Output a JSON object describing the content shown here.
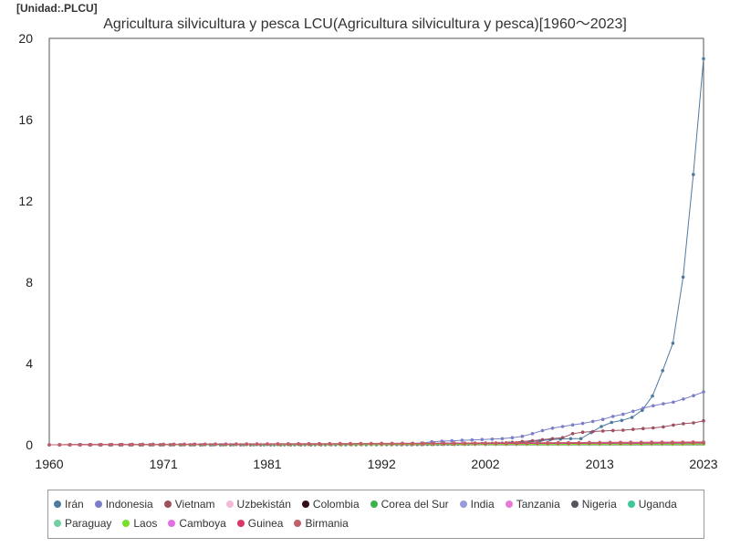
{
  "unit_label": "[Unidad:.PLCU]",
  "chart_data": {
    "type": "line",
    "title": "Agricultura silvicultura y pesca LCU(Agricultura silvicultura y pesca)[1960～2023]",
    "xlabel": "",
    "ylabel": "",
    "xlim": [
      1960,
      2023
    ],
    "ylim": [
      0,
      20
    ],
    "x_ticks": [
      1960,
      1971,
      1981,
      1992,
      2002,
      2013,
      2023
    ],
    "y_ticks": [
      0,
      4,
      8,
      12,
      16,
      20
    ],
    "grid": true,
    "legend_position": "bottom",
    "series": [
      {
        "name": "Irán",
        "color": "#4f7aa0",
        "points": [
          [
            1960,
            0
          ],
          [
            1990,
            0
          ],
          [
            1998,
            0.02
          ],
          [
            2003,
            0.05
          ],
          [
            2006,
            0.1
          ],
          [
            2008,
            0.2
          ],
          [
            2009,
            0.25
          ],
          [
            2010,
            0.28
          ],
          [
            2011,
            0.3
          ],
          [
            2012,
            0.3
          ],
          [
            2013,
            0.6
          ],
          [
            2014,
            0.9
          ],
          [
            2015,
            1.1
          ],
          [
            2016,
            1.2
          ],
          [
            2017,
            1.35
          ],
          [
            2018,
            1.7
          ],
          [
            2019,
            2.4
          ],
          [
            2020,
            3.65
          ],
          [
            2021,
            5.0
          ],
          [
            2022,
            8.25
          ],
          [
            2023,
            13.3
          ],
          [
            2024,
            19.0
          ]
        ]
      },
      {
        "name": "Indonesia",
        "color": "#7b7fc8",
        "points": [
          [
            1960,
            0
          ],
          [
            1986,
            0
          ],
          [
            1990,
            0.02
          ],
          [
            1996,
            0.05
          ],
          [
            1997,
            0.08
          ],
          [
            1998,
            0.15
          ],
          [
            1999,
            0.18
          ],
          [
            2000,
            0.2
          ],
          [
            2001,
            0.22
          ],
          [
            2002,
            0.24
          ],
          [
            2003,
            0.26
          ],
          [
            2004,
            0.28
          ],
          [
            2005,
            0.3
          ],
          [
            2006,
            0.35
          ],
          [
            2007,
            0.42
          ],
          [
            2008,
            0.55
          ],
          [
            2009,
            0.7
          ],
          [
            2010,
            0.82
          ],
          [
            2011,
            0.9
          ],
          [
            2012,
            0.98
          ],
          [
            2013,
            1.05
          ],
          [
            2014,
            1.15
          ],
          [
            2015,
            1.25
          ],
          [
            2016,
            1.4
          ],
          [
            2017,
            1.5
          ],
          [
            2018,
            1.65
          ],
          [
            2019,
            1.8
          ],
          [
            2020,
            1.92
          ],
          [
            2021,
            2.02
          ],
          [
            2022,
            2.1
          ],
          [
            2023,
            2.25
          ],
          [
            2024,
            2.42
          ],
          [
            2025,
            2.6
          ]
        ]
      },
      {
        "name": "Vietnam",
        "color": "#9c4f5f",
        "points": [
          [
            1960,
            0
          ],
          [
            1995,
            0
          ],
          [
            2000,
            0.03
          ],
          [
            2005,
            0.08
          ],
          [
            2008,
            0.2
          ],
          [
            2010,
            0.3
          ],
          [
            2011,
            0.35
          ],
          [
            2012,
            0.55
          ],
          [
            2013,
            0.62
          ],
          [
            2014,
            0.65
          ],
          [
            2015,
            0.68
          ],
          [
            2016,
            0.7
          ],
          [
            2017,
            0.72
          ],
          [
            2018,
            0.76
          ],
          [
            2019,
            0.8
          ],
          [
            2020,
            0.83
          ],
          [
            2021,
            0.88
          ],
          [
            2022,
            0.97
          ],
          [
            2023,
            1.04
          ],
          [
            2024,
            1.08
          ],
          [
            2025,
            1.18
          ]
        ]
      },
      {
        "name": "Uzbekistán",
        "color": "#f4b9d4",
        "points": [
          [
            1960,
            0
          ],
          [
            2023,
            0.06
          ]
        ]
      },
      {
        "name": "Colombia",
        "color": "#3a0a16",
        "points": [
          [
            1960,
            0
          ],
          [
            2023,
            0.05
          ]
        ]
      },
      {
        "name": "Corea del Sur",
        "color": "#3bb54a",
        "points": [
          [
            1960,
            0
          ],
          [
            2023,
            0.04
          ]
        ]
      },
      {
        "name": "India",
        "color": "#9a9ad8",
        "points": [
          [
            1960,
            0
          ],
          [
            2023,
            0.03
          ]
        ]
      },
      {
        "name": "Tanzania",
        "color": "#e57ad8",
        "points": [
          [
            1960,
            0
          ],
          [
            2023,
            0.08
          ]
        ]
      },
      {
        "name": "Nigeria",
        "color": "#55555f",
        "points": [
          [
            1960,
            0
          ],
          [
            2023,
            0.1
          ]
        ]
      },
      {
        "name": "Uganda",
        "color": "#3ec79b",
        "points": [
          [
            1960,
            0
          ],
          [
            2023,
            0.05
          ]
        ]
      },
      {
        "name": "Paraguay",
        "color": "#6fd0a0",
        "points": [
          [
            1960,
            0
          ],
          [
            2023,
            0.04
          ]
        ]
      },
      {
        "name": "Laos",
        "color": "#77e02a",
        "points": [
          [
            1960,
            0
          ],
          [
            2023,
            0.03
          ]
        ]
      },
      {
        "name": "Camboya",
        "color": "#e36fe3",
        "points": [
          [
            1960,
            0
          ],
          [
            2023,
            0.12
          ]
        ]
      },
      {
        "name": "Guinea",
        "color": "#d93868",
        "points": [
          [
            1960,
            0
          ],
          [
            2023,
            0.09
          ]
        ]
      },
      {
        "name": "Birmania",
        "color": "#c0606a",
        "points": [
          [
            1960,
            0
          ],
          [
            2023,
            0.14
          ]
        ]
      }
    ]
  }
}
